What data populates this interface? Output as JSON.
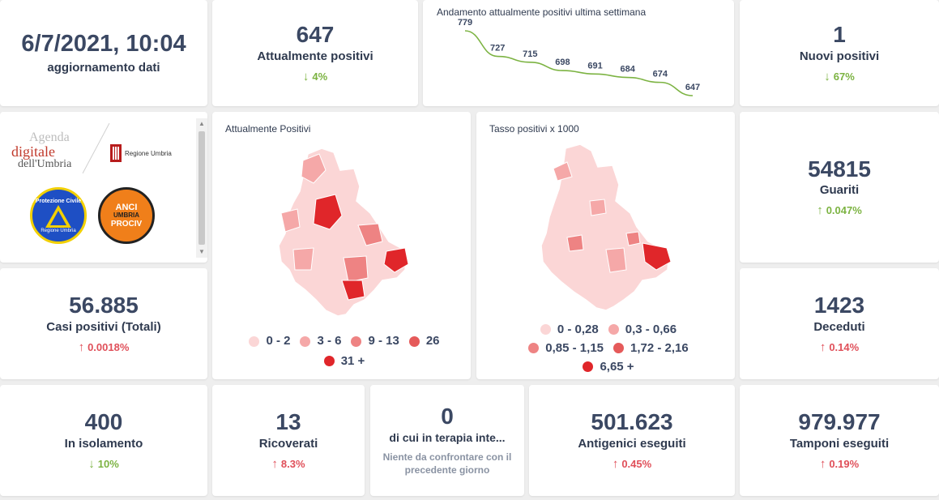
{
  "colors": {
    "accent_up": "#e0505a",
    "accent_down": "#7cb342",
    "map_c1": "#fbd6d6",
    "map_c2": "#f5a8a8",
    "map_c3": "#ee8383",
    "map_c4": "#e55a5a",
    "map_c5": "#e0262a"
  },
  "update": {
    "datetime": "6/7/2021, 10:04",
    "label": "aggiornamento dati"
  },
  "attualmente_positivi": {
    "value": "647",
    "label": "Attualmente positivi",
    "delta": "4%",
    "direction": "down"
  },
  "trend": {
    "title": "Andamento attualmente positivi ultima settimana",
    "values": [
      779,
      727,
      715,
      698,
      691,
      684,
      674,
      647
    ]
  },
  "nuovi_positivi": {
    "value": "1",
    "label": "Nuovi positivi",
    "delta": "67%",
    "direction": "down"
  },
  "logos": {
    "agenda_line1": "Agenda",
    "agenda_line2": "digitale",
    "agenda_line3": "dell'Umbria",
    "regione": "Regione Umbria",
    "protezione": "Protezione Civile",
    "protezione_sub": "Regione Umbria",
    "anci": "ANCI",
    "anci_sub": "UMBRIA",
    "prociv": "PROCIV"
  },
  "map_positivi": {
    "title": "Attualmente Positivi",
    "legend": [
      "0 - 2",
      "3 - 6",
      "9 - 13",
      "26",
      "31 +"
    ]
  },
  "map_tasso": {
    "title": "Tasso positivi x 1000",
    "legend": [
      "0 - 0,28",
      "0,3 - 0,66",
      "0,85 - 1,15",
      "1,72 - 2,16",
      "6,65 +"
    ]
  },
  "guariti": {
    "value": "54815",
    "label": "Guariti",
    "delta": "0.047%",
    "direction": "up"
  },
  "casi_totali": {
    "value": "56.885",
    "label": "Casi positivi (Totali)",
    "delta": "0.0018%",
    "direction": "up"
  },
  "deceduti": {
    "value": "1423",
    "label": "Deceduti",
    "delta": "0.14%",
    "direction": "up"
  },
  "isolamento": {
    "value": "400",
    "label": "In isolamento",
    "delta": "10%",
    "direction": "down"
  },
  "ricoverati": {
    "value": "13",
    "label": "Ricoverati",
    "delta": "8.3%",
    "direction": "up"
  },
  "terapia": {
    "value": "0",
    "label": "di cui in terapia inte...",
    "note": "Niente da confrontare con il precedente giorno"
  },
  "antigenici": {
    "value": "501.623",
    "label": "Antigenici eseguiti",
    "delta": "0.45%",
    "direction": "up"
  },
  "tamponi": {
    "value": "979.977",
    "label": "Tamponi eseguiti",
    "delta": "0.19%",
    "direction": "up"
  }
}
